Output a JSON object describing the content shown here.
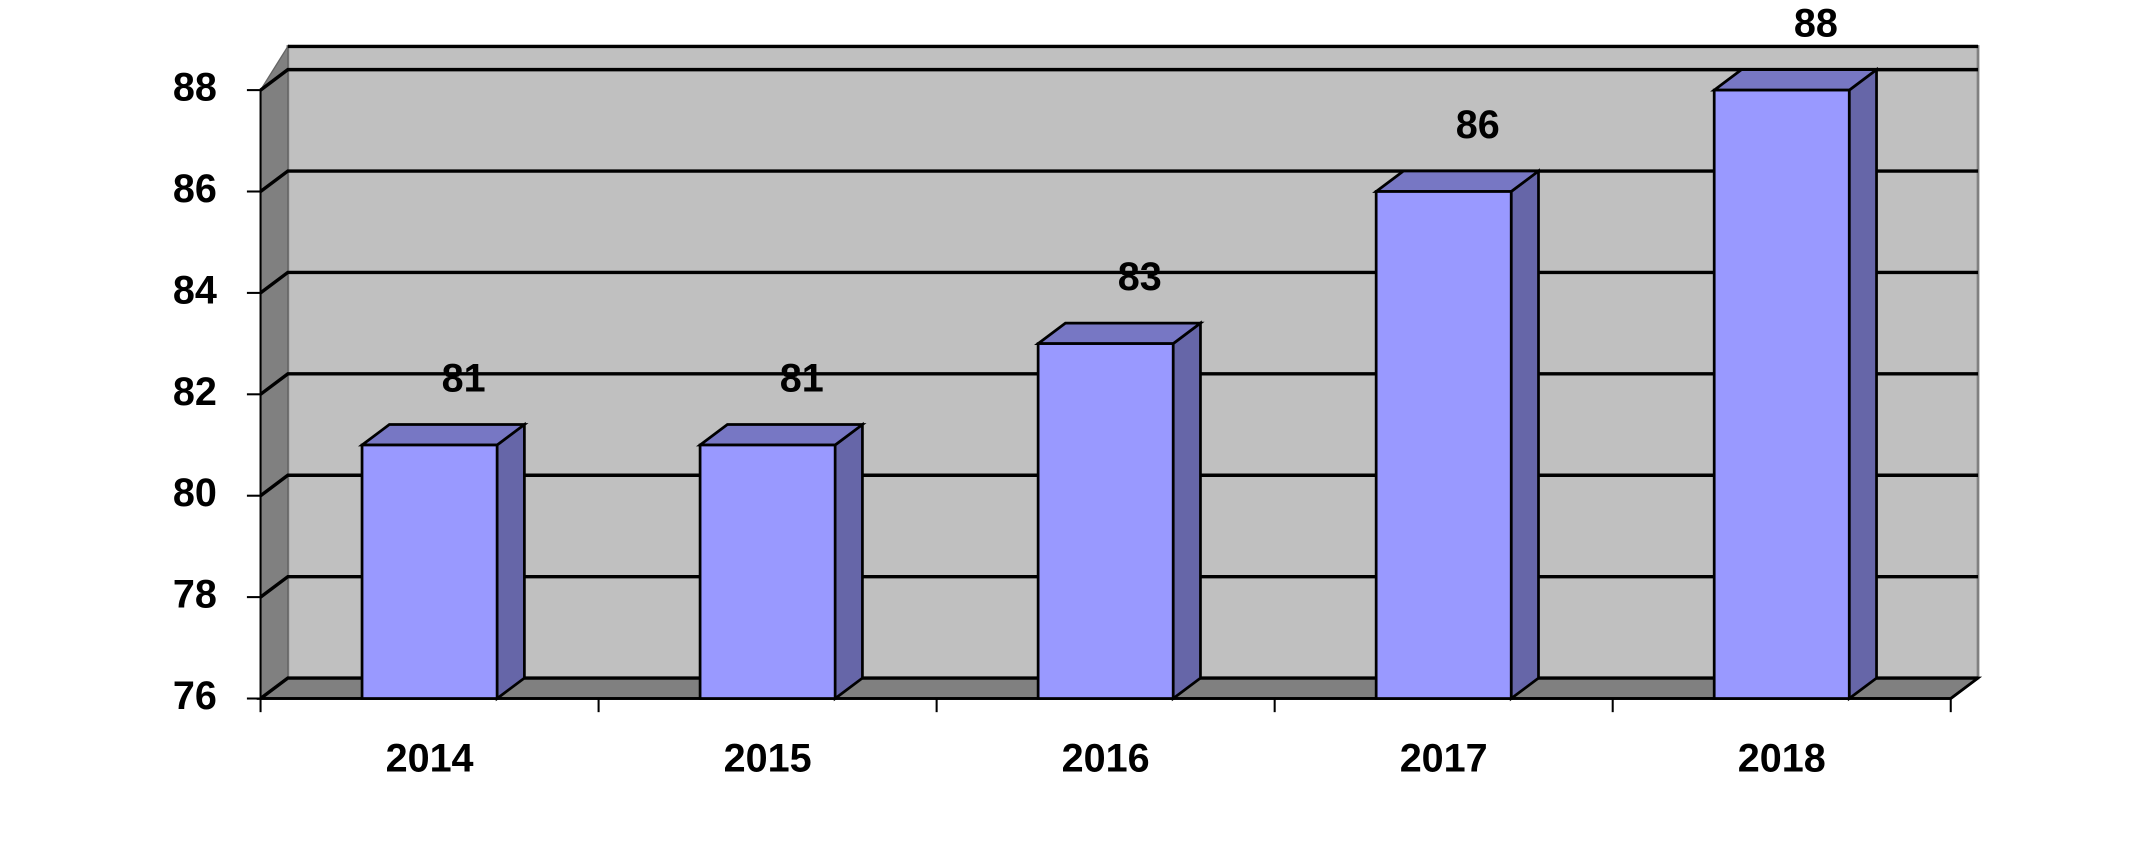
{
  "chart_data": {
    "type": "bar3d",
    "categories": [
      "2014",
      "2015",
      "2016",
      "2017",
      "2018"
    ],
    "values": [
      81,
      81,
      83,
      86,
      88
    ],
    "color": "#9999ff",
    "ylim": [
      76,
      88
    ],
    "yticks": [
      76,
      78,
      80,
      82,
      84,
      86,
      88
    ],
    "grid": true
  }
}
